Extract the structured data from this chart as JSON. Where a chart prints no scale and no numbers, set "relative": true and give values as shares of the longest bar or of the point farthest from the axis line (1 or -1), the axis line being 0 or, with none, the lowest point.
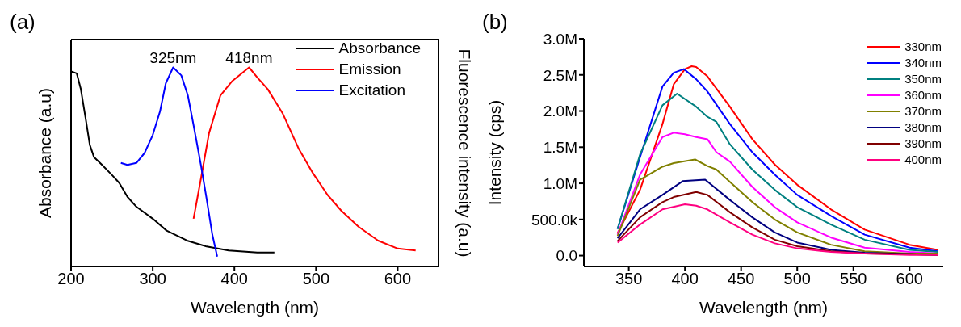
{
  "chart_data": [
    {
      "type": "line",
      "title": "(a)",
      "xlabel": "Wavelength (nm)",
      "ylabel": "Absorbance (a.u)",
      "y2label": "Fluorescence intensity (a.u)",
      "relative": true,
      "xlim": [
        200,
        650
      ],
      "xticks": [
        200,
        300,
        400,
        500,
        600
      ],
      "legend": "top right",
      "annotations": [
        {
          "text": "325nm",
          "x": 325,
          "y": 1
        },
        {
          "text": "418nm",
          "x": 418,
          "y": 1
        }
      ],
      "series": [
        {
          "name": "Absorbance",
          "color": "#000000",
          "x": [
            200,
            207,
            212,
            218,
            223,
            228,
            238,
            250,
            259,
            269,
            280,
            300,
            317,
            342,
            366,
            393,
            428,
            449
          ],
          "values": [
            0.98,
            0.97,
            0.89,
            0.74,
            0.61,
            0.55,
            0.51,
            0.46,
            0.42,
            0.35,
            0.3,
            0.24,
            0.18,
            0.13,
            0.1,
            0.08,
            0.07,
            0.07
          ]
        },
        {
          "name": "Emission",
          "color": "#ff0000",
          "x": [
            350,
            359,
            369,
            383,
            397,
            418,
            428,
            441,
            459,
            479,
            496,
            514,
            531,
            552,
            576,
            600,
            622
          ],
          "values": [
            0.24,
            0.44,
            0.67,
            0.86,
            0.93,
            1.0,
            0.95,
            0.89,
            0.77,
            0.59,
            0.47,
            0.36,
            0.28,
            0.2,
            0.13,
            0.09,
            0.08
          ]
        },
        {
          "name": "Excitation",
          "color": "#0000ff",
          "x": [
            261,
            269,
            280,
            290,
            300,
            309,
            316,
            325,
            335,
            343,
            350,
            359,
            366,
            373,
            379
          ],
          "values": [
            0.52,
            0.51,
            0.52,
            0.57,
            0.66,
            0.78,
            0.92,
            1.0,
            0.96,
            0.86,
            0.71,
            0.51,
            0.34,
            0.16,
            0.05
          ]
        }
      ]
    },
    {
      "type": "line",
      "title": "(b)",
      "xlabel": "Wavelength (nm)",
      "ylabel": "Intensity (cps)",
      "xlim": [
        310,
        630
      ],
      "xticks": [
        350,
        400,
        450,
        500,
        550,
        600
      ],
      "ylim": [
        -150000,
        3000000
      ],
      "yticks": [
        {
          "value": 0,
          "label": "0.0"
        },
        {
          "value": 500000,
          "label": "500.0k"
        },
        {
          "value": 1000000,
          "label": "1.0M"
        },
        {
          "value": 1500000,
          "label": "1.5M"
        },
        {
          "value": 2000000,
          "label": "2.0M"
        },
        {
          "value": 2500000,
          "label": "2.5M"
        },
        {
          "value": 3000000,
          "label": "3.0M"
        }
      ],
      "legend": "top right",
      "series": [
        {
          "name": "330nm",
          "color": "#ff0000",
          "x": [
            340,
            360,
            380,
            390,
            400,
            406,
            410,
            420,
            440,
            460,
            480,
            500,
            530,
            560,
            600,
            625
          ],
          "values": [
            310000,
            910000,
            1820000,
            2370000,
            2580000,
            2620000,
            2610000,
            2480000,
            2060000,
            1610000,
            1260000,
            980000,
            640000,
            360000,
            150000,
            80000
          ]
        },
        {
          "name": "340nm",
          "color": "#0000ff",
          "x": [
            340,
            360,
            380,
            390,
            399,
            410,
            420,
            440,
            460,
            480,
            500,
            530,
            560,
            600,
            625
          ],
          "values": [
            370000,
            1360000,
            2340000,
            2530000,
            2580000,
            2440000,
            2270000,
            1820000,
            1430000,
            1120000,
            840000,
            550000,
            290000,
            110000,
            60000
          ]
        },
        {
          "name": "350nm",
          "color": "#008080",
          "x": [
            340,
            360,
            380,
            393,
            410,
            420,
            428,
            440,
            460,
            480,
            500,
            530,
            560,
            600,
            625
          ],
          "values": [
            370000,
            1400000,
            2080000,
            2240000,
            2060000,
            1920000,
            1850000,
            1540000,
            1190000,
            910000,
            670000,
            430000,
            220000,
            80000,
            50000
          ]
        },
        {
          "name": "360nm",
          "color": "#ff00ff",
          "x": [
            340,
            360,
            380,
            390,
            400,
            410,
            420,
            428,
            440,
            460,
            480,
            500,
            530,
            560,
            600,
            625
          ],
          "values": [
            290000,
            1120000,
            1640000,
            1700000,
            1680000,
            1640000,
            1610000,
            1430000,
            1300000,
            950000,
            670000,
            460000,
            250000,
            110000,
            50000,
            30000
          ]
        },
        {
          "name": "370nm",
          "color": "#808000",
          "x": [
            340,
            360,
            380,
            390,
            409,
            420,
            428,
            440,
            460,
            480,
            500,
            530,
            560,
            600,
            625
          ],
          "values": [
            270000,
            1050000,
            1230000,
            1280000,
            1330000,
            1240000,
            1190000,
            1020000,
            740000,
            500000,
            320000,
            150000,
            60000,
            30000,
            30000
          ]
        },
        {
          "name": "380nm",
          "color": "#000080",
          "x": [
            340,
            360,
            380,
            398,
            418,
            440,
            460,
            480,
            500,
            530,
            560,
            600,
            625
          ],
          "values": [
            240000,
            640000,
            840000,
            1030000,
            1050000,
            770000,
            530000,
            320000,
            180000,
            80000,
            40000,
            20000,
            10000
          ]
        },
        {
          "name": "390nm",
          "color": "#800000",
          "x": [
            340,
            360,
            380,
            390,
            410,
            420,
            440,
            460,
            480,
            500,
            530,
            560,
            600,
            625
          ],
          "values": [
            200000,
            530000,
            740000,
            810000,
            880000,
            840000,
            600000,
            390000,
            220000,
            130000,
            60000,
            30000,
            20000,
            10000
          ]
        },
        {
          "name": "400nm",
          "color": "#ff0080",
          "x": [
            340,
            360,
            380,
            400,
            410,
            420,
            440,
            460,
            480,
            500,
            530,
            560,
            600,
            625
          ],
          "values": [
            180000,
            430000,
            640000,
            710000,
            690000,
            640000,
            460000,
            290000,
            170000,
            100000,
            50000,
            30000,
            10000,
            10000
          ]
        }
      ]
    }
  ]
}
